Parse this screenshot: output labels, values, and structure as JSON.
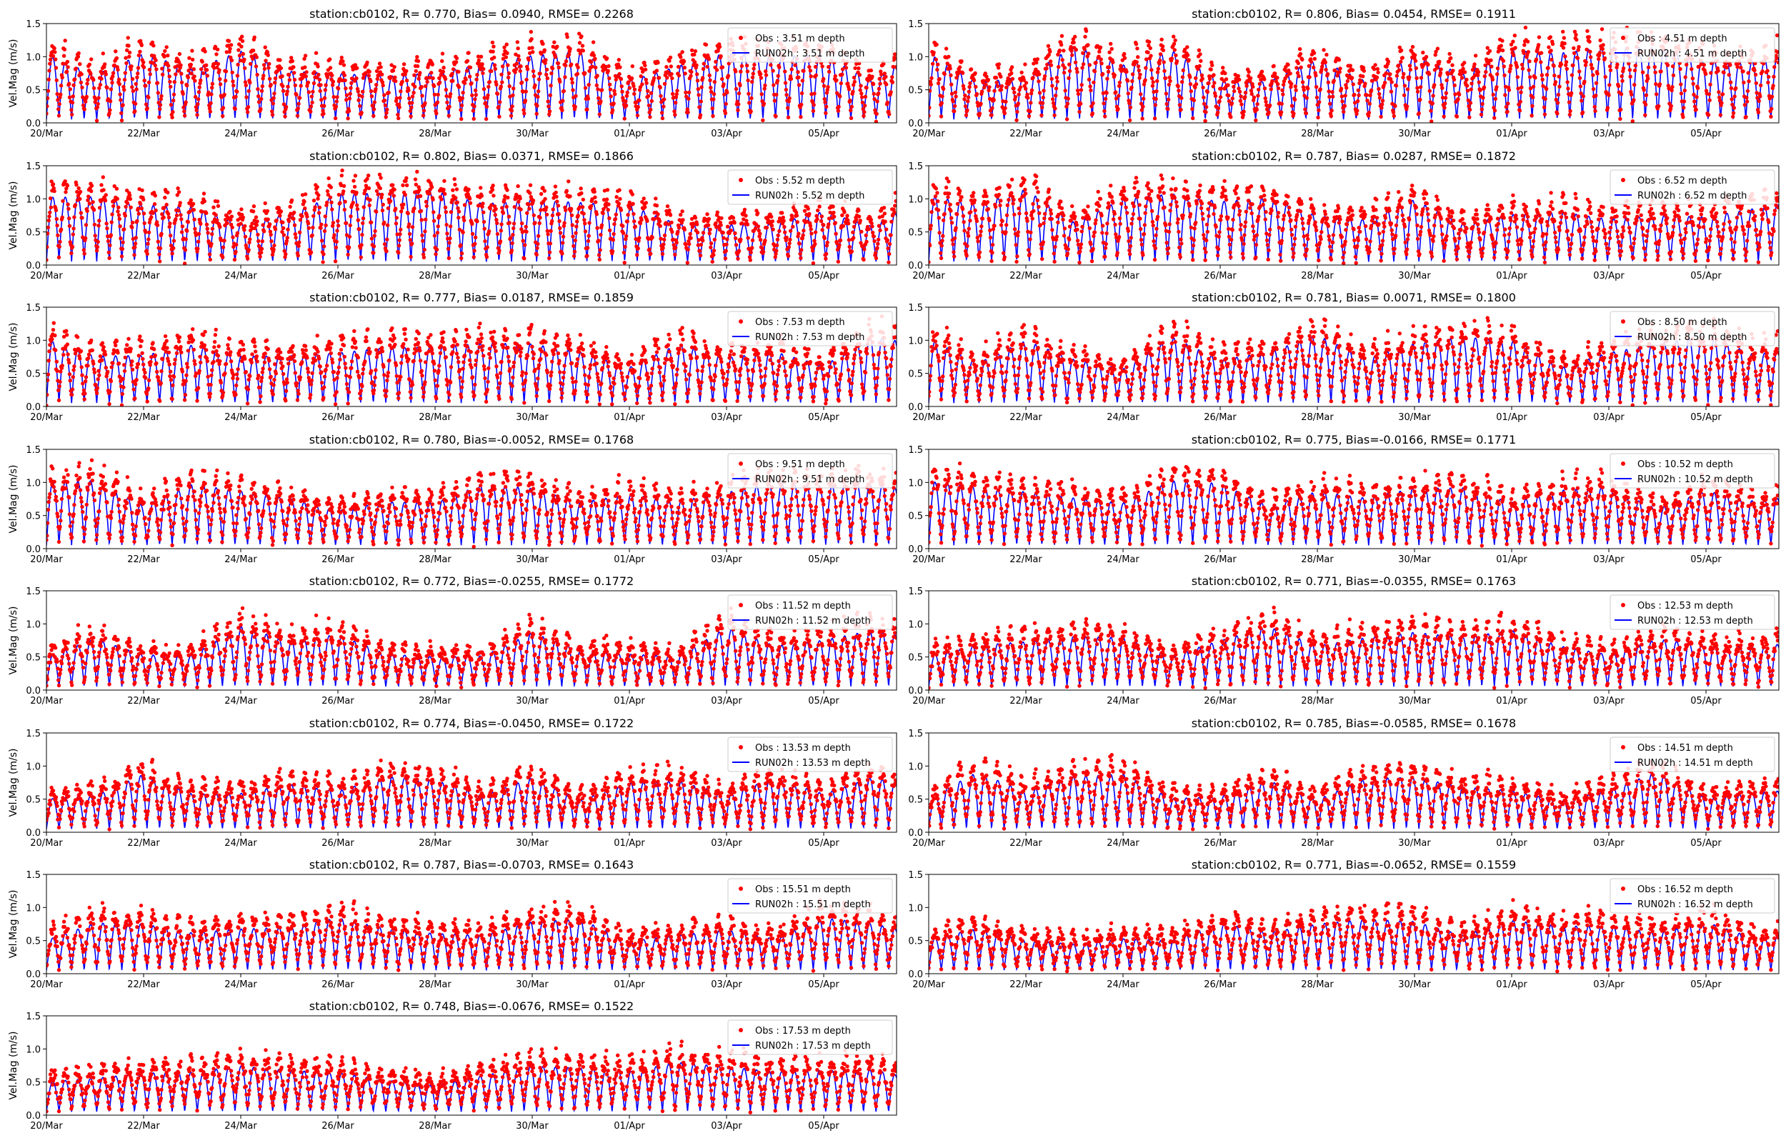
{
  "colors": {
    "obs": "#ff0000",
    "model": "#0000ff",
    "axes": "#000000",
    "background": "#ffffff"
  },
  "chart_data": [
    {
      "type": "line",
      "title": "station:cb0102, R= 0.770, Bias= 0.0940, RMSE= 0.2268",
      "ylabel": "Vel.Mag (m/s)",
      "ylim": [
        0,
        1.5
      ],
      "yticks": [
        "0.0",
        "0.5",
        "1.0",
        "1.5"
      ],
      "xlim_days": [
        0,
        17.5
      ],
      "xticks": [
        "20/Mar",
        "22/Mar",
        "24/Mar",
        "26/Mar",
        "28/Mar",
        "30/Mar",
        "01/Apr",
        "03/Apr",
        "05/Apr"
      ],
      "legend_position": "upper right",
      "series": [
        {
          "name": "Obs : 3.51 m depth",
          "style": "points"
        },
        {
          "name": "RUN02h : 3.51 m depth",
          "style": "line"
        }
      ]
    },
    {
      "type": "line",
      "title": "station:cb0102, R= 0.806, Bias= 0.0454, RMSE= 0.1911",
      "ylabel": "",
      "ylim": [
        0,
        1.5
      ],
      "yticks": [
        "0.0",
        "0.5",
        "1.0",
        "1.5"
      ],
      "xlim_days": [
        0,
        17.5
      ],
      "xticks": [
        "20/Mar",
        "22/Mar",
        "24/Mar",
        "26/Mar",
        "28/Mar",
        "30/Mar",
        "01/Apr",
        "03/Apr",
        "05/Apr"
      ],
      "legend_position": "upper right",
      "series": [
        {
          "name": "Obs : 4.51 m depth",
          "style": "points"
        },
        {
          "name": "RUN02h : 4.51 m depth",
          "style": "line"
        }
      ]
    },
    {
      "type": "line",
      "title": "station:cb0102, R= 0.802, Bias= 0.0371, RMSE= 0.1866",
      "ylabel": "Vel.Mag (m/s)",
      "ylim": [
        0,
        1.5
      ],
      "yticks": [
        "0.0",
        "0.5",
        "1.0",
        "1.5"
      ],
      "xlim_days": [
        0,
        17.5
      ],
      "xticks": [
        "20/Mar",
        "22/Mar",
        "24/Mar",
        "26/Mar",
        "28/Mar",
        "30/Mar",
        "01/Apr",
        "03/Apr",
        "05/Apr"
      ],
      "legend_position": "upper right",
      "series": [
        {
          "name": "Obs : 5.52 m depth",
          "style": "points"
        },
        {
          "name": "RUN02h : 5.52 m depth",
          "style": "line"
        }
      ]
    },
    {
      "type": "line",
      "title": "station:cb0102, R= 0.787, Bias= 0.0287, RMSE= 0.1872",
      "ylabel": "",
      "ylim": [
        0,
        1.5
      ],
      "yticks": [
        "0.0",
        "0.5",
        "1.0",
        "1.5"
      ],
      "xlim_days": [
        0,
        17.5
      ],
      "xticks": [
        "20/Mar",
        "22/Mar",
        "24/Mar",
        "26/Mar",
        "28/Mar",
        "30/Mar",
        "01/Apr",
        "03/Apr",
        "05/Apr"
      ],
      "legend_position": "upper right",
      "series": [
        {
          "name": "Obs : 6.52 m depth",
          "style": "points"
        },
        {
          "name": "RUN02h : 6.52 m depth",
          "style": "line"
        }
      ]
    },
    {
      "type": "line",
      "title": "station:cb0102, R= 0.777, Bias= 0.0187, RMSE= 0.1859",
      "ylabel": "Vel.Mag (m/s)",
      "ylim": [
        0,
        1.5
      ],
      "yticks": [
        "0.0",
        "0.5",
        "1.0",
        "1.5"
      ],
      "xlim_days": [
        0,
        17.5
      ],
      "xticks": [
        "20/Mar",
        "22/Mar",
        "24/Mar",
        "26/Mar",
        "28/Mar",
        "30/Mar",
        "01/Apr",
        "03/Apr",
        "05/Apr"
      ],
      "legend_position": "upper right",
      "series": [
        {
          "name": "Obs : 7.53 m depth",
          "style": "points"
        },
        {
          "name": "RUN02h : 7.53 m depth",
          "style": "line"
        }
      ]
    },
    {
      "type": "line",
      "title": "station:cb0102, R= 0.781, Bias= 0.0071, RMSE= 0.1800",
      "ylabel": "",
      "ylim": [
        0,
        1.5
      ],
      "yticks": [
        "0.0",
        "0.5",
        "1.0",
        "1.5"
      ],
      "xlim_days": [
        0,
        17.5
      ],
      "xticks": [
        "20/Mar",
        "22/Mar",
        "24/Mar",
        "26/Mar",
        "28/Mar",
        "30/Mar",
        "01/Apr",
        "03/Apr",
        "05/Apr"
      ],
      "legend_position": "upper right",
      "series": [
        {
          "name": "Obs : 8.50 m depth",
          "style": "points"
        },
        {
          "name": "RUN02h : 8.50 m depth",
          "style": "line"
        }
      ]
    },
    {
      "type": "line",
      "title": "station:cb0102, R= 0.780, Bias=-0.0052, RMSE= 0.1768",
      "ylabel": "Vel.Mag (m/s)",
      "ylim": [
        0,
        1.5
      ],
      "yticks": [
        "0.0",
        "0.5",
        "1.0",
        "1.5"
      ],
      "xlim_days": [
        0,
        17.5
      ],
      "xticks": [
        "20/Mar",
        "22/Mar",
        "24/Mar",
        "26/Mar",
        "28/Mar",
        "30/Mar",
        "01/Apr",
        "03/Apr",
        "05/Apr"
      ],
      "legend_position": "upper right",
      "series": [
        {
          "name": "Obs : 9.51 m depth",
          "style": "points"
        },
        {
          "name": "RUN02h : 9.51 m depth",
          "style": "line"
        }
      ]
    },
    {
      "type": "line",
      "title": "station:cb0102, R= 0.775, Bias=-0.0166, RMSE= 0.1771",
      "ylabel": "",
      "ylim": [
        0,
        1.5
      ],
      "yticks": [
        "0.0",
        "0.5",
        "1.0",
        "1.5"
      ],
      "xlim_days": [
        0,
        17.5
      ],
      "xticks": [
        "20/Mar",
        "22/Mar",
        "24/Mar",
        "26/Mar",
        "28/Mar",
        "30/Mar",
        "01/Apr",
        "03/Apr",
        "05/Apr"
      ],
      "legend_position": "upper right",
      "series": [
        {
          "name": "Obs : 10.52 m depth",
          "style": "points"
        },
        {
          "name": "RUN02h : 10.52 m depth",
          "style": "line"
        }
      ]
    },
    {
      "type": "line",
      "title": "station:cb0102, R= 0.772, Bias=-0.0255, RMSE= 0.1772",
      "ylabel": "Vel.Mag (m/s)",
      "ylim": [
        0,
        1.5
      ],
      "yticks": [
        "0.0",
        "0.5",
        "1.0",
        "1.5"
      ],
      "xlim_days": [
        0,
        17.5
      ],
      "xticks": [
        "20/Mar",
        "22/Mar",
        "24/Mar",
        "26/Mar",
        "28/Mar",
        "30/Mar",
        "01/Apr",
        "03/Apr",
        "05/Apr"
      ],
      "legend_position": "upper right",
      "series": [
        {
          "name": "Obs : 11.52 m depth",
          "style": "points"
        },
        {
          "name": "RUN02h : 11.52 m depth",
          "style": "line"
        }
      ]
    },
    {
      "type": "line",
      "title": "station:cb0102, R= 0.771, Bias=-0.0355, RMSE= 0.1763",
      "ylabel": "",
      "ylim": [
        0,
        1.5
      ],
      "yticks": [
        "0.0",
        "0.5",
        "1.0",
        "1.5"
      ],
      "xlim_days": [
        0,
        17.5
      ],
      "xticks": [
        "20/Mar",
        "22/Mar",
        "24/Mar",
        "26/Mar",
        "28/Mar",
        "30/Mar",
        "01/Apr",
        "03/Apr",
        "05/Apr"
      ],
      "legend_position": "upper right",
      "series": [
        {
          "name": "Obs : 12.53 m depth",
          "style": "points"
        },
        {
          "name": "RUN02h : 12.53 m depth",
          "style": "line"
        }
      ]
    },
    {
      "type": "line",
      "title": "station:cb0102, R= 0.774, Bias=-0.0450, RMSE= 0.1722",
      "ylabel": "Vel.Mag (m/s)",
      "ylim": [
        0,
        1.5
      ],
      "yticks": [
        "0.0",
        "0.5",
        "1.0",
        "1.5"
      ],
      "xlim_days": [
        0,
        17.5
      ],
      "xticks": [
        "20/Mar",
        "22/Mar",
        "24/Mar",
        "26/Mar",
        "28/Mar",
        "30/Mar",
        "01/Apr",
        "03/Apr",
        "05/Apr"
      ],
      "legend_position": "upper right",
      "series": [
        {
          "name": "Obs : 13.53 m depth",
          "style": "points"
        },
        {
          "name": "RUN02h : 13.53 m depth",
          "style": "line"
        }
      ]
    },
    {
      "type": "line",
      "title": "station:cb0102, R= 0.785, Bias=-0.0585, RMSE= 0.1678",
      "ylabel": "",
      "ylim": [
        0,
        1.5
      ],
      "yticks": [
        "0.0",
        "0.5",
        "1.0",
        "1.5"
      ],
      "xlim_days": [
        0,
        17.5
      ],
      "xticks": [
        "20/Mar",
        "22/Mar",
        "24/Mar",
        "26/Mar",
        "28/Mar",
        "30/Mar",
        "01/Apr",
        "03/Apr",
        "05/Apr"
      ],
      "legend_position": "upper right",
      "series": [
        {
          "name": "Obs : 14.51 m depth",
          "style": "points"
        },
        {
          "name": "RUN02h : 14.51 m depth",
          "style": "line"
        }
      ]
    },
    {
      "type": "line",
      "title": "station:cb0102, R= 0.787, Bias=-0.0703, RMSE= 0.1643",
      "ylabel": "Vel.Mag (m/s)",
      "ylim": [
        0,
        1.5
      ],
      "yticks": [
        "0.0",
        "0.5",
        "1.0",
        "1.5"
      ],
      "xlim_days": [
        0,
        17.5
      ],
      "xticks": [
        "20/Mar",
        "22/Mar",
        "24/Mar",
        "26/Mar",
        "28/Mar",
        "30/Mar",
        "01/Apr",
        "03/Apr",
        "05/Apr"
      ],
      "legend_position": "upper right",
      "series": [
        {
          "name": "Obs : 15.51 m depth",
          "style": "points"
        },
        {
          "name": "RUN02h : 15.51 m depth",
          "style": "line"
        }
      ]
    },
    {
      "type": "line",
      "title": "station:cb0102, R= 0.771, Bias=-0.0652, RMSE= 0.1559",
      "ylabel": "",
      "ylim": [
        0,
        1.5
      ],
      "yticks": [
        "0.0",
        "0.5",
        "1.0",
        "1.5"
      ],
      "xlim_days": [
        0,
        17.5
      ],
      "xticks": [
        "20/Mar",
        "22/Mar",
        "24/Mar",
        "26/Mar",
        "28/Mar",
        "30/Mar",
        "01/Apr",
        "03/Apr",
        "05/Apr"
      ],
      "legend_position": "upper right",
      "series": [
        {
          "name": "Obs : 16.52 m depth",
          "style": "points"
        },
        {
          "name": "RUN02h : 16.52 m depth",
          "style": "line"
        }
      ]
    },
    {
      "type": "line",
      "title": "station:cb0102, R= 0.748, Bias=-0.0676, RMSE= 0.1522",
      "ylabel": "Vel.Mag (m/s)",
      "ylim": [
        0,
        1.5
      ],
      "yticks": [
        "0.0",
        "0.5",
        "1.0",
        "1.5"
      ],
      "xlim_days": [
        0,
        17.5
      ],
      "xticks": [
        "20/Mar",
        "22/Mar",
        "24/Mar",
        "26/Mar",
        "28/Mar",
        "30/Mar",
        "01/Apr",
        "03/Apr",
        "05/Apr"
      ],
      "legend_position": "upper right",
      "series": [
        {
          "name": "Obs : 17.53 m depth",
          "style": "points"
        },
        {
          "name": "RUN02h : 17.53 m depth",
          "style": "line"
        }
      ]
    }
  ]
}
